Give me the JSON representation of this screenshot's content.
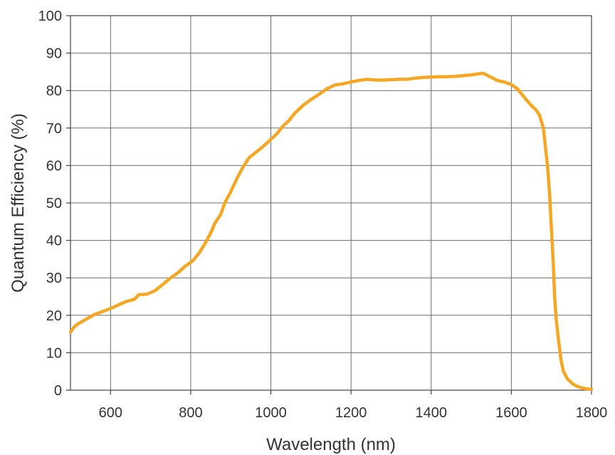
{
  "chart_data": {
    "type": "line",
    "title": "",
    "xlabel": "Wavelength (nm)",
    "ylabel": "Quantum Efficiency (%)",
    "xlim": [
      500,
      1800
    ],
    "ylim": [
      0,
      100
    ],
    "x_ticks": [
      600,
      800,
      1000,
      1200,
      1400,
      1600,
      1800
    ],
    "y_ticks": [
      0,
      10,
      20,
      30,
      40,
      50,
      60,
      70,
      80,
      90,
      100
    ],
    "grid": true,
    "legend": "none",
    "series": [
      {
        "color": "#f5a623",
        "points": [
          [
            500,
            15.5
          ],
          [
            510,
            17
          ],
          [
            520,
            17.8
          ],
          [
            540,
            19
          ],
          [
            560,
            20.2
          ],
          [
            580,
            21
          ],
          [
            600,
            21.8
          ],
          [
            620,
            22.8
          ],
          [
            640,
            23.7
          ],
          [
            660,
            24.3
          ],
          [
            670,
            25.5
          ],
          [
            690,
            25.6
          ],
          [
            710,
            26.5
          ],
          [
            730,
            28.2
          ],
          [
            750,
            30
          ],
          [
            770,
            31.5
          ],
          [
            785,
            33
          ],
          [
            805,
            34.5
          ],
          [
            820,
            36.5
          ],
          [
            835,
            39
          ],
          [
            850,
            42
          ],
          [
            860,
            44.5
          ],
          [
            875,
            47
          ],
          [
            885,
            50
          ],
          [
            900,
            53
          ],
          [
            915,
            56.5
          ],
          [
            930,
            59.5
          ],
          [
            945,
            62
          ],
          [
            960,
            63.3
          ],
          [
            980,
            65
          ],
          [
            1000,
            67
          ],
          [
            1015,
            68.5
          ],
          [
            1030,
            70.5
          ],
          [
            1045,
            72
          ],
          [
            1060,
            74
          ],
          [
            1080,
            76
          ],
          [
            1100,
            77.6
          ],
          [
            1120,
            79
          ],
          [
            1140,
            80.5
          ],
          [
            1160,
            81.5
          ],
          [
            1180,
            81.8
          ],
          [
            1200,
            82.3
          ],
          [
            1220,
            82.7
          ],
          [
            1240,
            83
          ],
          [
            1260,
            82.8
          ],
          [
            1280,
            82.8
          ],
          [
            1300,
            82.9
          ],
          [
            1320,
            83
          ],
          [
            1340,
            83
          ],
          [
            1360,
            83.3
          ],
          [
            1380,
            83.5
          ],
          [
            1400,
            83.6
          ],
          [
            1420,
            83.7
          ],
          [
            1440,
            83.7
          ],
          [
            1460,
            83.8
          ],
          [
            1480,
            84
          ],
          [
            1500,
            84.2
          ],
          [
            1520,
            84.5
          ],
          [
            1530,
            84.6
          ],
          [
            1545,
            83.8
          ],
          [
            1565,
            82.7
          ],
          [
            1585,
            82.2
          ],
          [
            1600,
            81.6
          ],
          [
            1615,
            80.5
          ],
          [
            1630,
            78.5
          ],
          [
            1640,
            77.2
          ],
          [
            1650,
            76
          ],
          [
            1660,
            75
          ],
          [
            1670,
            73.5
          ],
          [
            1680,
            70
          ],
          [
            1685,
            65
          ],
          [
            1690,
            60
          ],
          [
            1695,
            53
          ],
          [
            1700,
            43
          ],
          [
            1705,
            33
          ],
          [
            1708,
            25
          ],
          [
            1712,
            19
          ],
          [
            1718,
            13
          ],
          [
            1724,
            8
          ],
          [
            1730,
            5
          ],
          [
            1740,
            3
          ],
          [
            1755,
            1.5
          ],
          [
            1770,
            0.8
          ],
          [
            1785,
            0.4
          ],
          [
            1800,
            0.2
          ]
        ]
      }
    ]
  }
}
